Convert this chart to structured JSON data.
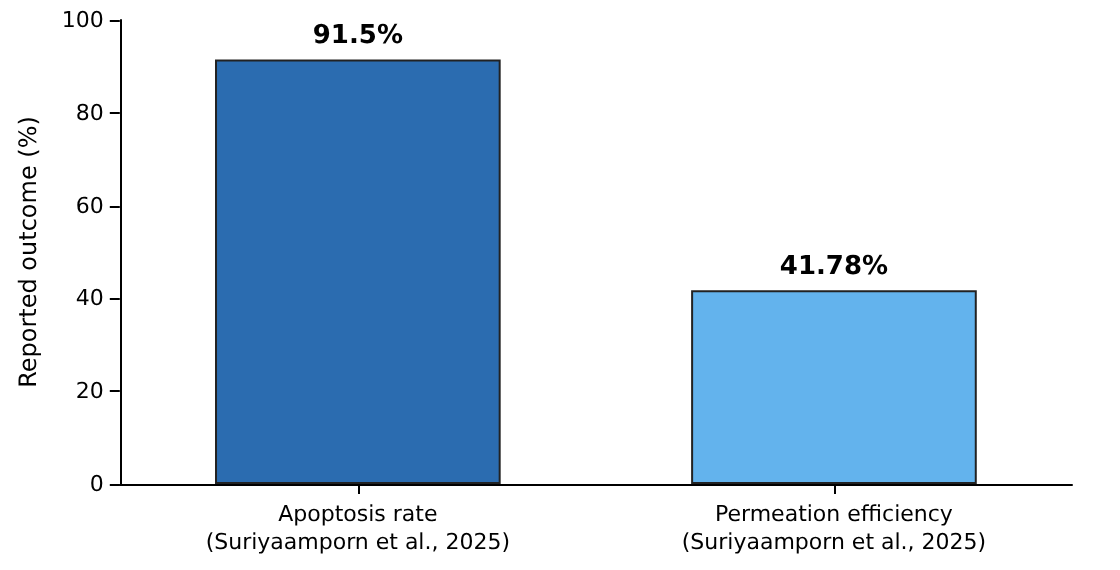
{
  "chart_data": {
    "type": "bar",
    "ylabel": "Reported outcome (%)",
    "categories": [
      "Apoptosis rate\n(Suriyaamporn et al., 2025)",
      "Permeation efficiency\n(Suriyaamporn et al., 2025)"
    ],
    "values": [
      91.5,
      41.78
    ],
    "colors": [
      "#2b6cb0",
      "#63b3ed"
    ],
    "value_labels": [
      "91.5%",
      "41.78%"
    ],
    "ylim": [
      0,
      100
    ],
    "yticks": [
      0,
      20,
      40,
      60,
      80,
      100
    ],
    "grid": false
  }
}
